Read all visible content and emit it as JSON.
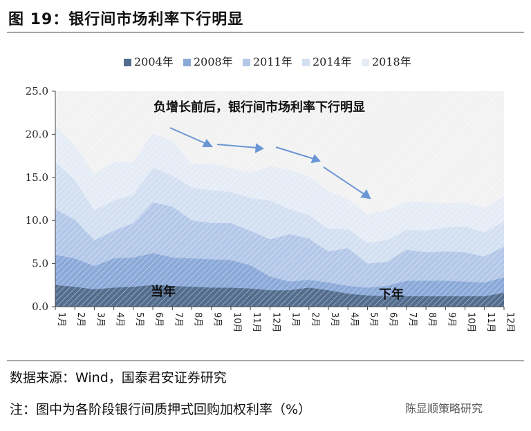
{
  "figure_title": "图 19：银行间市场利率下行明显",
  "source_text": "数据来源：Wind，国泰君安证券研究",
  "note_text": "注：图中为各阶段银行间质押式回购加权利率（%）",
  "watermark_text": "陈显顺策略研究",
  "chart_data": {
    "type": "area",
    "title": "",
    "xlabel": "",
    "ylabel": "",
    "ylim": [
      0,
      25
    ],
    "yticks": [
      "0.0",
      "5.0",
      "10.0",
      "15.0",
      "20.0",
      "25.0"
    ],
    "grid": false,
    "legend_position": "top-center",
    "stacked": true,
    "categories": [
      "1月",
      "2月",
      "3月",
      "4月",
      "5月",
      "6月",
      "7月",
      "8月",
      "9月",
      "10月",
      "11月",
      "12月",
      "1月",
      "2月",
      "3月",
      "4月",
      "5月",
      "6月",
      "7月",
      "8月",
      "9月",
      "10月",
      "11月",
      "12月"
    ],
    "series": [
      {
        "name": "2004年",
        "color": "#536d8e",
        "values": [
          2.5,
          2.3,
          2.0,
          2.2,
          2.3,
          2.5,
          2.4,
          2.3,
          2.2,
          2.2,
          2.1,
          1.9,
          1.9,
          2.2,
          1.9,
          1.5,
          1.3,
          1.2,
          1.2,
          1.2,
          1.2,
          1.2,
          1.2,
          1.6
        ]
      },
      {
        "name": "2008年",
        "color": "#8ba9d8",
        "values": [
          3.5,
          3.3,
          2.7,
          3.4,
          3.4,
          3.7,
          3.3,
          3.3,
          3.3,
          3.2,
          2.7,
          1.6,
          1.0,
          0.9,
          0.9,
          0.9,
          0.9,
          1.2,
          1.8,
          1.8,
          1.8,
          1.7,
          1.6,
          1.8
        ]
      },
      {
        "name": "2011年",
        "color": "#b3c8e8",
        "values": [
          5.3,
          4.5,
          3.0,
          3.2,
          4.0,
          5.9,
          5.9,
          4.4,
          4.2,
          4.3,
          4.0,
          4.3,
          5.5,
          4.8,
          3.6,
          4.4,
          2.8,
          2.8,
          3.6,
          3.3,
          3.4,
          3.4,
          3.0,
          3.6
        ]
      },
      {
        "name": "2014年",
        "color": "#d3e0f2",
        "values": [
          5.5,
          4.6,
          3.5,
          3.5,
          3.3,
          4.0,
          3.6,
          3.8,
          3.8,
          3.6,
          3.8,
          4.5,
          2.9,
          2.7,
          2.6,
          2.2,
          2.4,
          2.5,
          2.3,
          2.5,
          2.8,
          3.0,
          2.8,
          2.9
        ]
      },
      {
        "name": "2018年",
        "color": "#e6ecf6",
        "values": [
          4.2,
          4.0,
          4.2,
          4.5,
          3.8,
          4.0,
          4.0,
          2.7,
          3.1,
          2.8,
          2.9,
          4.0,
          4.6,
          4.5,
          4.4,
          3.5,
          3.3,
          3.5,
          3.3,
          3.3,
          2.8,
          2.8,
          2.9,
          2.9
        ]
      }
    ],
    "annotations": {
      "headline": "负增长前后，银行间市场利率下行明显",
      "left_label": "当年",
      "right_label": "下年"
    }
  }
}
